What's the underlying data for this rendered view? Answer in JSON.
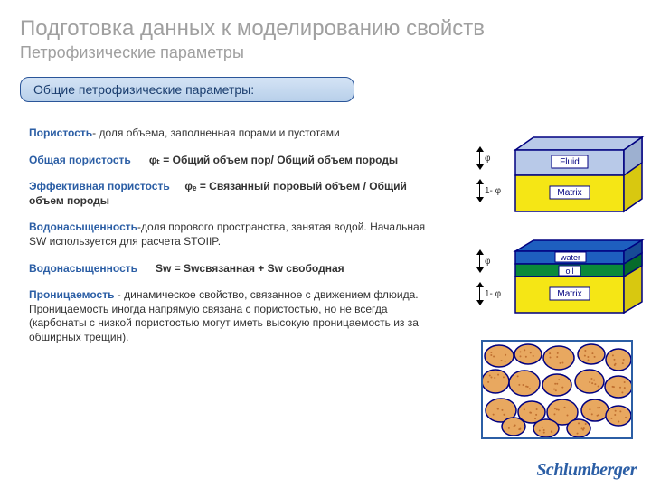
{
  "title": {
    "main": "Подготовка данных к моделированию свойств",
    "sub": "Петрофизические параметры"
  },
  "sectionHeader": "Общие петрофизические параметры:",
  "body": {
    "porosityTerm": "Пористость",
    "porosityDef": "- доля объема, заполненная порами и пустотами",
    "totalPorTerm": "Общая пористость",
    "totalPorFormula": "φₜ = Общий объем пор/ Общий объем породы",
    "effPorTerm": "Эффективная пористость",
    "effPorFormula": "φₑ = Связанный поровый объем / Общий объем породы",
    "swTerm": "Водонасыщенность",
    "swDef": "-доля порового пространства, занятая водой. Начальная SW используется для расчета STOIIP.",
    "swFormulaTerm": "Водонасыщенность",
    "swFormula": "Sw = Swсвязанная + Sw свободная",
    "permTerm": "Проницаемость",
    "permDef": " - динамическое свойство, связанное с движением флюида. Проницаемость иногда напрямую связана с пористостью, но не всегда (карбонаты с низкой пористостью могут иметь высокую проницаемость из за обширных трещин)."
  },
  "diagram1": {
    "labels": {
      "phi": "φ",
      "oneMinusPhi": "1- φ",
      "fluid": "Fluid",
      "matrix": "Matrix"
    },
    "colors": {
      "fluid": "#b8c9e8",
      "matrix": "#f5e615",
      "border": "#000080",
      "text": "#000080"
    }
  },
  "diagram2": {
    "labels": {
      "phi": "φ",
      "oneMinusPhi": "1- φ",
      "water": "water",
      "oil": "oil",
      "matrix": "Matrix"
    },
    "colors": {
      "water": "#1e5fbf",
      "oil": "#0a8a3a",
      "matrix": "#f5e615",
      "border": "#000080"
    }
  },
  "diagram3": {
    "grainFill": "#e8a860",
    "grainStroke": "#000080",
    "dotFill": "#c07030"
  },
  "logo": "Schlumberger"
}
